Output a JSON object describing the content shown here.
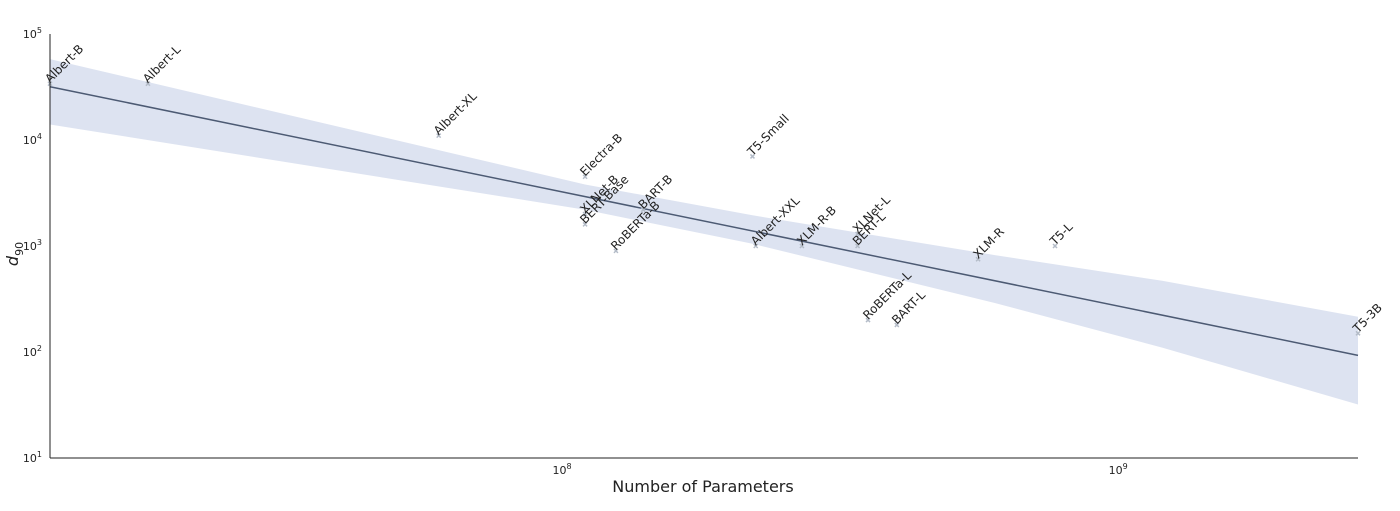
{
  "chart_data": {
    "type": "scatter",
    "title": "",
    "xlabel": "Number of Parameters",
    "ylabel": "d",
    "ylabel_subscript": "90",
    "x_scale": "log",
    "y_scale": "log",
    "xlim": [
      12000000,
      2700000000
    ],
    "ylim": [
      10,
      100000
    ],
    "x_ticks": [
      {
        "value": 100000000,
        "base": "10",
        "exp": "8"
      },
      {
        "value": 1000000000,
        "base": "10",
        "exp": "9"
      }
    ],
    "y_ticks": [
      {
        "value": 10,
        "base": "10",
        "exp": "1"
      },
      {
        "value": 100,
        "base": "10",
        "exp": "2"
      },
      {
        "value": 1000,
        "base": "10",
        "exp": "3"
      },
      {
        "value": 10000,
        "base": "10",
        "exp": "4"
      },
      {
        "value": 100000,
        "base": "10",
        "exp": "5"
      }
    ],
    "grid": false,
    "colors": {
      "point": "#b4bcc8",
      "fit_line": "#4c5a73",
      "band": "#dde3f1"
    },
    "points": [
      {
        "label": "Albert-B",
        "x": 12000000,
        "y": 34000
      },
      {
        "label": "Albert-L",
        "x": 18000000,
        "y": 34000
      },
      {
        "label": "Albert-XL",
        "x": 60000000,
        "y": 11000
      },
      {
        "label": "Electra-B",
        "x": 110000000,
        "y": 4500
      },
      {
        "label": "XLNet-B",
        "x": 110000000,
        "y": 2000
      },
      {
        "label": "BERT-Base",
        "x": 110000000,
        "y": 1600
      },
      {
        "label": "RoBERTa-B",
        "x": 125000000,
        "y": 900
      },
      {
        "label": "BART-B",
        "x": 140000000,
        "y": 2200
      },
      {
        "label": "T5-Small",
        "x": 220000000,
        "y": 7000
      },
      {
        "label": "Albert-XXL",
        "x": 223000000,
        "y": 1000
      },
      {
        "label": "XLM-R-B",
        "x": 270000000,
        "y": 1000
      },
      {
        "label": "XLNet-L",
        "x": 340000000,
        "y": 1300
      },
      {
        "label": "BERT-L",
        "x": 340000000,
        "y": 1000
      },
      {
        "label": "RoBERTa-L",
        "x": 355000000,
        "y": 200
      },
      {
        "label": "BART-L",
        "x": 400000000,
        "y": 180
      },
      {
        "label": "XLM-R",
        "x": 560000000,
        "y": 750
      },
      {
        "label": "T5-L",
        "x": 770000000,
        "y": 1000
      },
      {
        "label": "T5-3B",
        "x": 2700000000,
        "y": 150
      }
    ],
    "fit": {
      "line": [
        {
          "x": 12000000,
          "y": 31800
        },
        {
          "x": 2700000000,
          "y": 93
        }
      ],
      "band": [
        {
          "x": 12000000,
          "lower": 14000,
          "upper": 58000
        },
        {
          "x": 110000000,
          "lower": 2200,
          "upper": 3800
        },
        {
          "x": 220000000,
          "lower": 1050,
          "upper": 1950
        },
        {
          "x": 600000000,
          "lower": 290,
          "upper": 820
        },
        {
          "x": 1200000000,
          "lower": 110,
          "upper": 470
        },
        {
          "x": 2700000000,
          "lower": 32,
          "upper": 215
        }
      ]
    }
  }
}
